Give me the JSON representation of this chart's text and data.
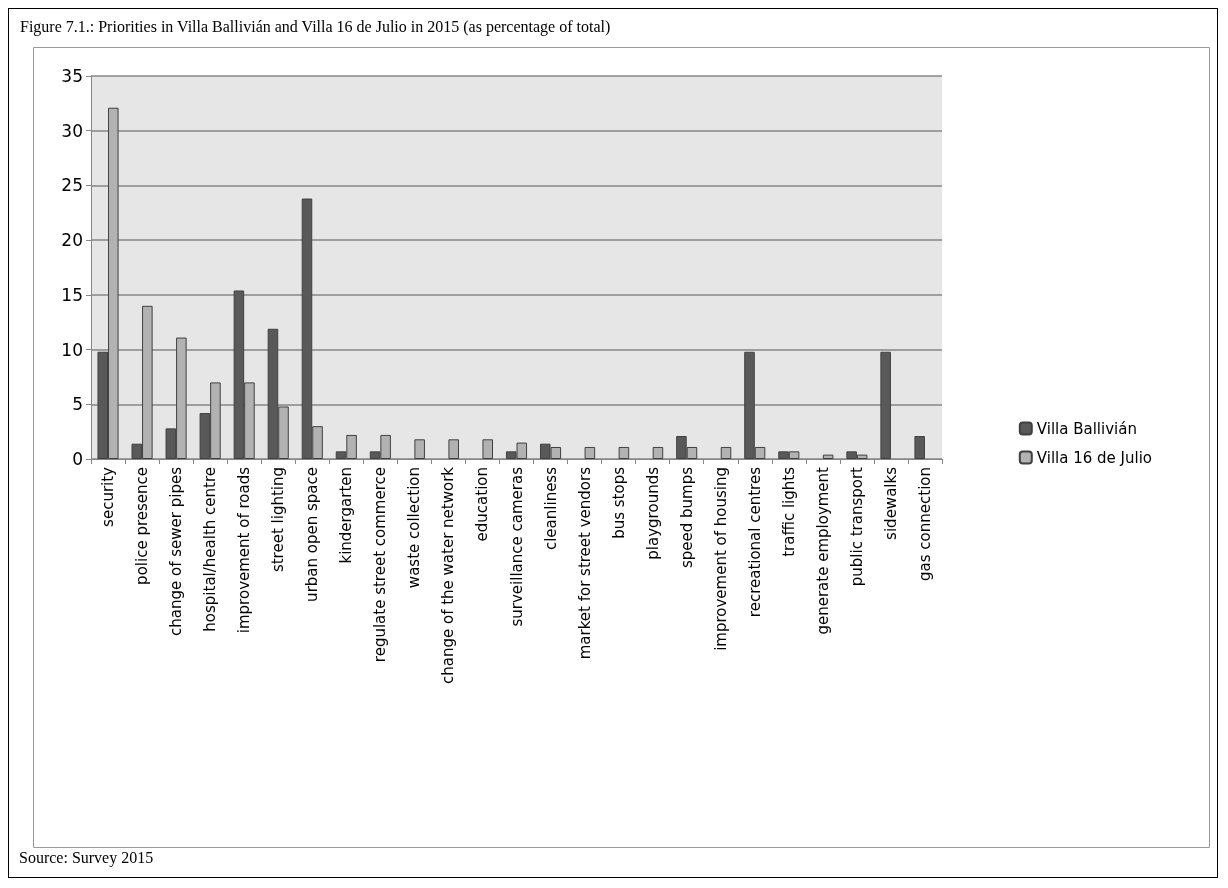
{
  "chart_data": {
    "type": "bar",
    "title": "Figure 7.1.: Priorities in Villa Ballivián and Villa 16 de Julio in 2015 (as percentage of total)",
    "categories": [
      "security",
      "police presence",
      "change of sewer pipes",
      "hospital/health centre",
      "improvement of roads",
      "street lighting",
      "urban open space",
      "kindergarten",
      "regulate street commerce",
      "waste collection",
      "change of the water network",
      "education",
      "surveillance cameras",
      "cleanliness",
      "market for street vendors",
      "bus stops",
      "playgrounds",
      "speed bumps",
      "improvement of housing",
      "recreational centres",
      "traffic lights",
      "generate employment",
      "public transport",
      "sidewalks",
      "gas connection"
    ],
    "series": [
      {
        "name": "Villa Ballivián",
        "color": "#595959",
        "values": [
          9.8,
          1.4,
          2.8,
          4.2,
          15.4,
          11.9,
          23.8,
          0.7,
          0.7,
          0,
          0,
          0,
          0.7,
          1.4,
          0,
          0,
          0,
          2.1,
          0,
          9.8,
          0.7,
          0,
          0.7,
          9.8,
          2.1
        ]
      },
      {
        "name": "Villa 16 de Julio",
        "color": "#b2b2b2",
        "values": [
          32.1,
          14.0,
          11.1,
          7.0,
          7.0,
          4.8,
          3.0,
          2.2,
          2.2,
          1.8,
          1.8,
          1.8,
          1.5,
          1.1,
          1.1,
          1.1,
          1.1,
          1.1,
          1.1,
          1.1,
          0.7,
          0.4,
          0.4,
          0,
          0
        ]
      }
    ],
    "ylim": [
      0,
      35
    ],
    "yticks": [
      0,
      5,
      10,
      15,
      20,
      25,
      30,
      35
    ],
    "grid": "y",
    "legend": "right",
    "annotations": [
      "Source: Survey 2015"
    ]
  }
}
